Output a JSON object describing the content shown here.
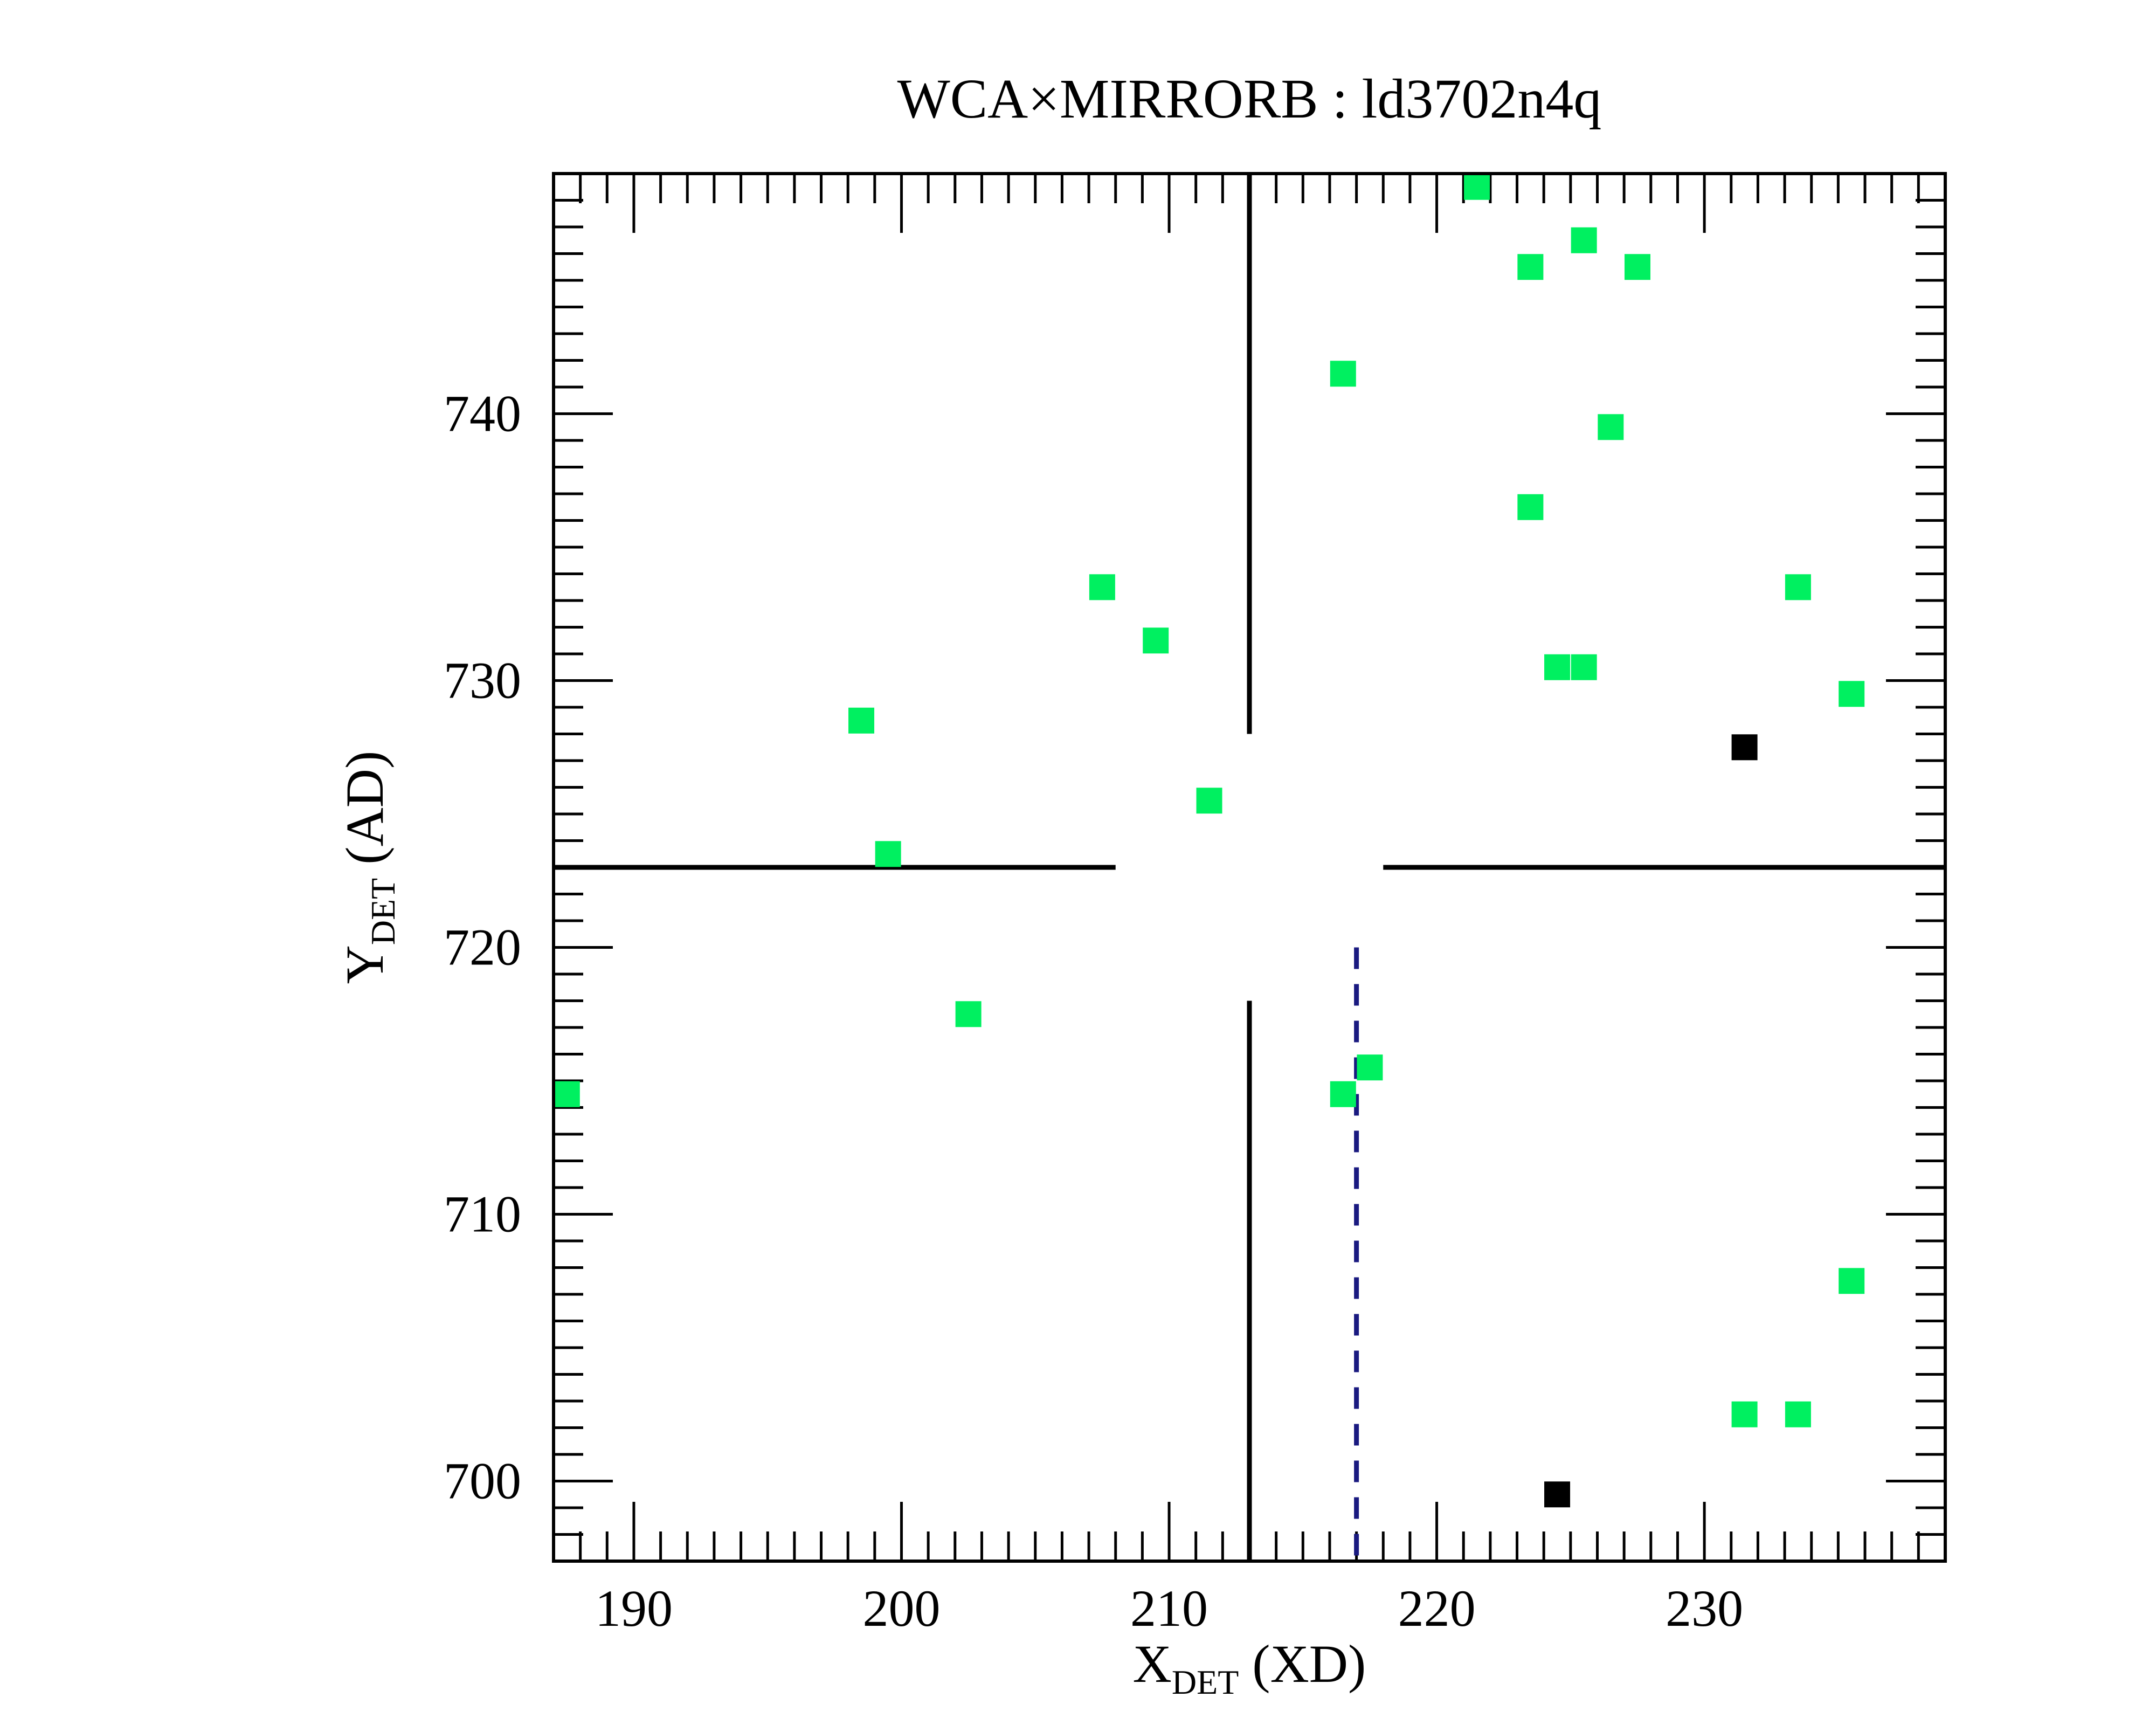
{
  "chart_data": {
    "type": "scatter",
    "title": {
      "prefix": "WCA",
      "symbol": "×",
      "middle": "MIRRORB",
      "separator": " : ",
      "dataset": "ld3702n4q"
    },
    "xlabel": {
      "main": "X",
      "sub": "DET",
      "suffix": " (XD)"
    },
    "ylabel": {
      "main": "Y",
      "sub": "DET",
      "suffix": " (AD)"
    },
    "xlim": [
      187,
      239
    ],
    "ylim": [
      697,
      749
    ],
    "x_ticks": [
      190,
      200,
      210,
      220,
      230
    ],
    "y_ticks": [
      700,
      710,
      720,
      730,
      740
    ],
    "x_tick_labels": [
      "190",
      "200",
      "210",
      "220",
      "230"
    ],
    "y_tick_labels": [
      "700",
      "710",
      "720",
      "730",
      "740"
    ],
    "grid": false,
    "colors": {
      "green": "#00f060",
      "black": "#000000",
      "crosshair": "#000000",
      "dashed": "#1a1a80"
    },
    "crosshair": {
      "x": 213,
      "y": 723,
      "gap_x": [
        208,
        218
      ],
      "gap_y": [
        718,
        728
      ]
    },
    "reference_line": {
      "x": 217,
      "y_range": [
        697,
        720
      ],
      "style": "dashed"
    },
    "series": [
      {
        "marker": "square",
        "color": "#00f060",
        "points": [
          [
            221.5,
            748.5
          ],
          [
            225.5,
            746.5
          ],
          [
            223.5,
            745.5
          ],
          [
            227.5,
            745.5
          ],
          [
            216.5,
            741.5
          ],
          [
            226.5,
            739.5
          ],
          [
            223.5,
            736.5
          ],
          [
            207.5,
            733.5
          ],
          [
            233.5,
            733.5
          ],
          [
            209.5,
            731.5
          ],
          [
            224.5,
            730.5
          ],
          [
            225.5,
            730.5
          ],
          [
            235.5,
            729.5
          ],
          [
            198.5,
            728.5
          ],
          [
            211.5,
            725.5
          ],
          [
            199.5,
            723.5
          ],
          [
            202.5,
            717.5
          ],
          [
            217.5,
            715.5
          ],
          [
            187.5,
            714.5
          ],
          [
            216.5,
            714.5
          ],
          [
            235.5,
            707.5
          ],
          [
            231.5,
            702.5
          ],
          [
            233.5,
            702.5
          ]
        ]
      },
      {
        "marker": "square",
        "color": "#000000",
        "points": [
          [
            231.5,
            727.5
          ],
          [
            224.5,
            699.5
          ]
        ]
      }
    ]
  }
}
